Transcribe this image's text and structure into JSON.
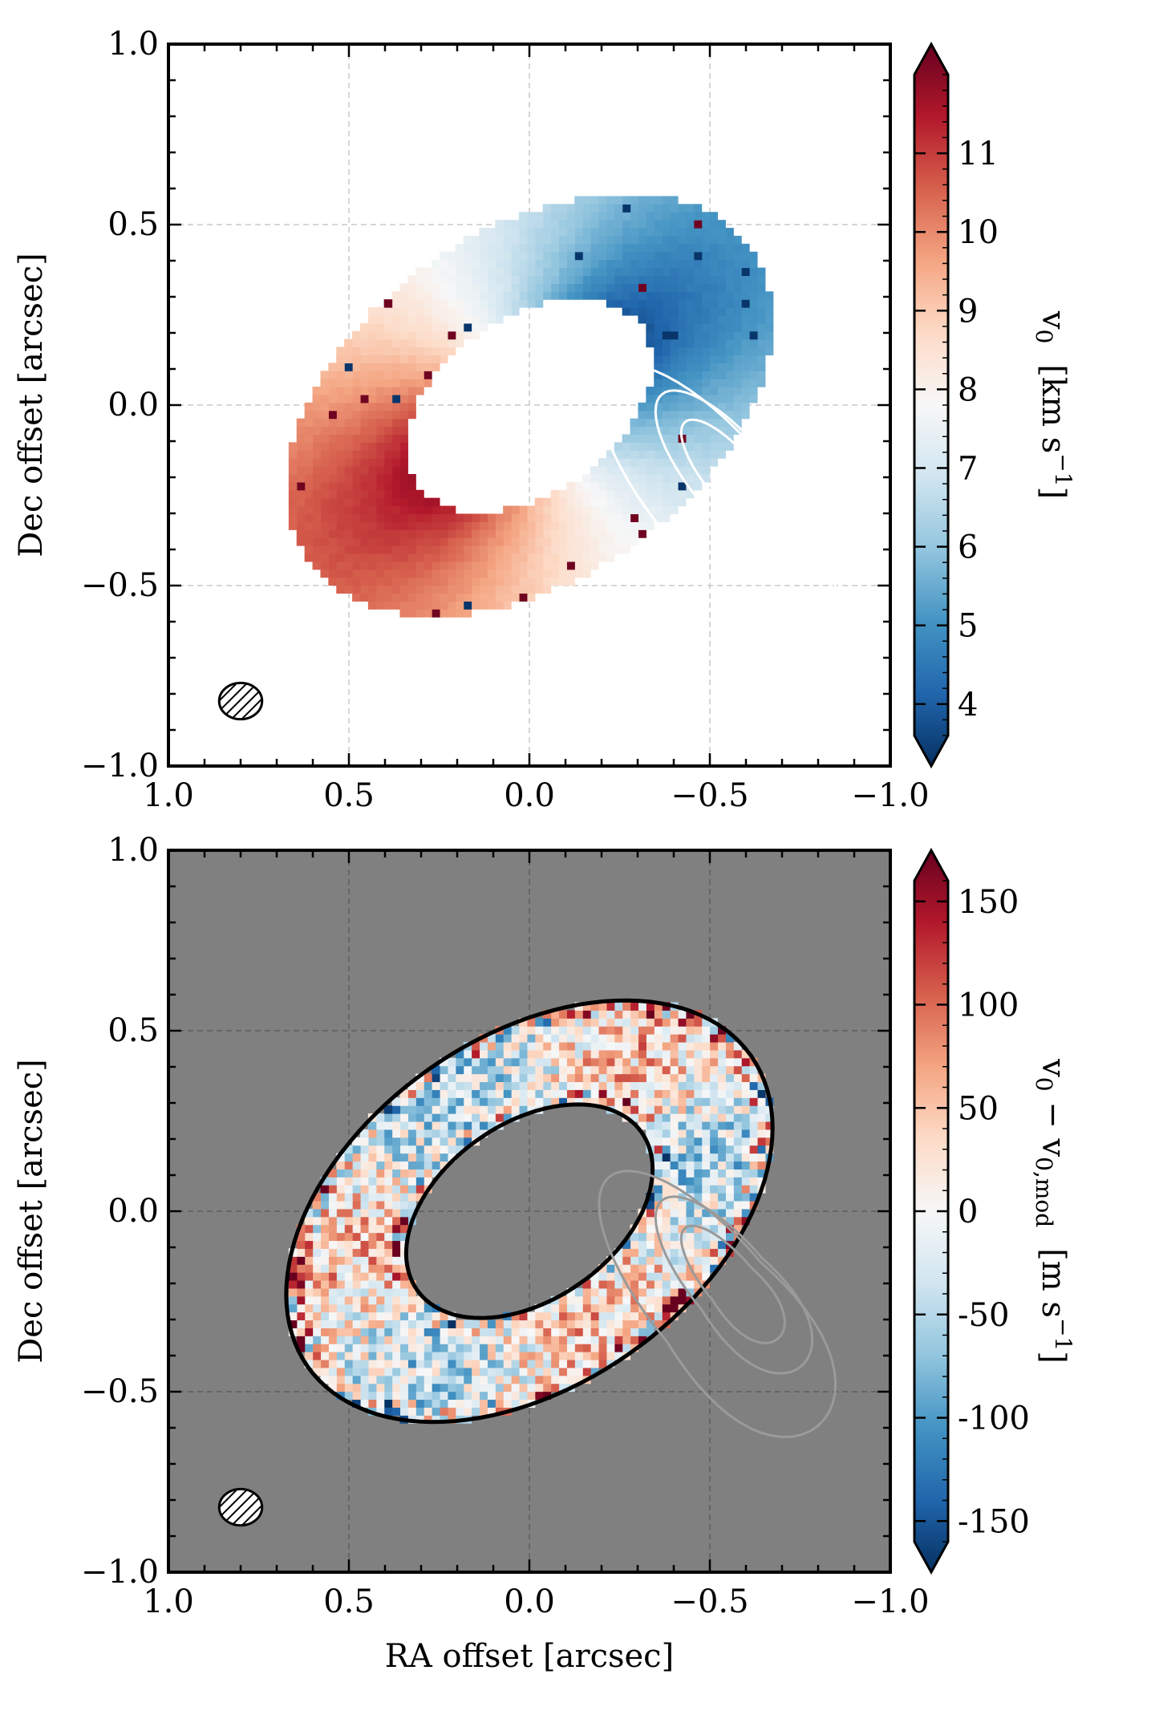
{
  "chart_data": [
    {
      "type": "heatmap",
      "title": "",
      "xlabel": "",
      "ylabel": "Dec offset [arcsec]",
      "xlim": [
        1.0,
        -1.0
      ],
      "ylim": [
        -1.0,
        1.0
      ],
      "xticks": [
        1.0,
        0.5,
        0.0,
        -0.5,
        -1.0
      ],
      "yticks": [
        1.0,
        0.5,
        0.0,
        -0.5,
        -1.0
      ],
      "xtick_labels": [
        "1.0",
        "0.5",
        "0.0",
        "−0.5",
        "−1.0"
      ],
      "ytick_labels": [
        "1.0",
        "0.5",
        "0.0",
        "−0.5",
        "−1.0"
      ],
      "grid": true,
      "colormap": "RdBu_r",
      "colorbar": {
        "label_main": "v",
        "label_sub": "0",
        "label_units": "[km s",
        "label_units_exp": "−1",
        "label_units_end": "]",
        "min": 3.6,
        "max": 12.0,
        "ticks": [
          4,
          5,
          6,
          7,
          8,
          9,
          10,
          11
        ],
        "tick_labels": [
          "4",
          "5",
          "6",
          "7",
          "8",
          "9",
          "10",
          "11"
        ]
      },
      "ring": {
        "center": [
          0.0,
          0.0
        ],
        "inner_radius": 0.38,
        "outer_radius": 0.75,
        "position_angle_deg": 35,
        "inclination_deg": 50
      },
      "data_range": {
        "red_side_max": 11.6,
        "blue_side_min": 4.4,
        "systemic": 7.8
      },
      "contour_levels": 3,
      "contour_peak": [
        -0.56,
        -0.2
      ],
      "beam": {
        "x": 0.8,
        "y": -0.82,
        "major": 0.066,
        "minor": 0.056
      }
    },
    {
      "type": "heatmap",
      "title": "",
      "xlabel": "RA offset [arcsec]",
      "ylabel": "Dec offset [arcsec]",
      "xlim": [
        1.0,
        -1.0
      ],
      "ylim": [
        -1.0,
        1.0
      ],
      "xticks": [
        1.0,
        0.5,
        0.0,
        -0.5,
        -1.0
      ],
      "yticks": [
        1.0,
        0.5,
        0.0,
        -0.5,
        -1.0
      ],
      "xtick_labels": [
        "1.0",
        "0.5",
        "0.0",
        "−0.5",
        "−1.0"
      ],
      "ytick_labels": [
        "1.0",
        "0.5",
        "0.0",
        "−0.5",
        "−1.0"
      ],
      "grid": true,
      "colormap": "RdBu_r",
      "colorbar": {
        "label_main": "v",
        "label_sub": "0",
        "label_mid": " − v",
        "label_sub2": "0,mod",
        "label_units": "[m s",
        "label_units_exp": "−1",
        "label_units_end": "]",
        "min": -160,
        "max": 160,
        "ticks": [
          150,
          100,
          50,
          0,
          -50,
          -100,
          -150
        ],
        "tick_labels": [
          "150",
          "100",
          "50",
          "0",
          "-50",
          "-100",
          "-150"
        ]
      },
      "ring": {
        "center": [
          0.0,
          0.0
        ],
        "inner_radius": 0.38,
        "outer_radius": 0.75,
        "position_angle_deg": 35,
        "inclination_deg": 50
      },
      "residual_range": [
        -150,
        150
      ],
      "contour_levels": 3,
      "contour_peak": [
        -0.56,
        -0.2
      ],
      "beam": {
        "x": 0.8,
        "y": -0.82,
        "major": 0.066,
        "minor": 0.056
      }
    }
  ],
  "colors": {
    "background_panel2": "#808080",
    "contour_panel1": "#ffffff",
    "contour_panel2": "#9a9a9a",
    "grid": "#c8c8c8",
    "cmap_stops": [
      "#053061",
      "#2166ac",
      "#4393c3",
      "#92c5de",
      "#d1e5f0",
      "#f7f7f7",
      "#fddbc7",
      "#f4a582",
      "#d6604d",
      "#b2182b",
      "#67001f"
    ]
  }
}
